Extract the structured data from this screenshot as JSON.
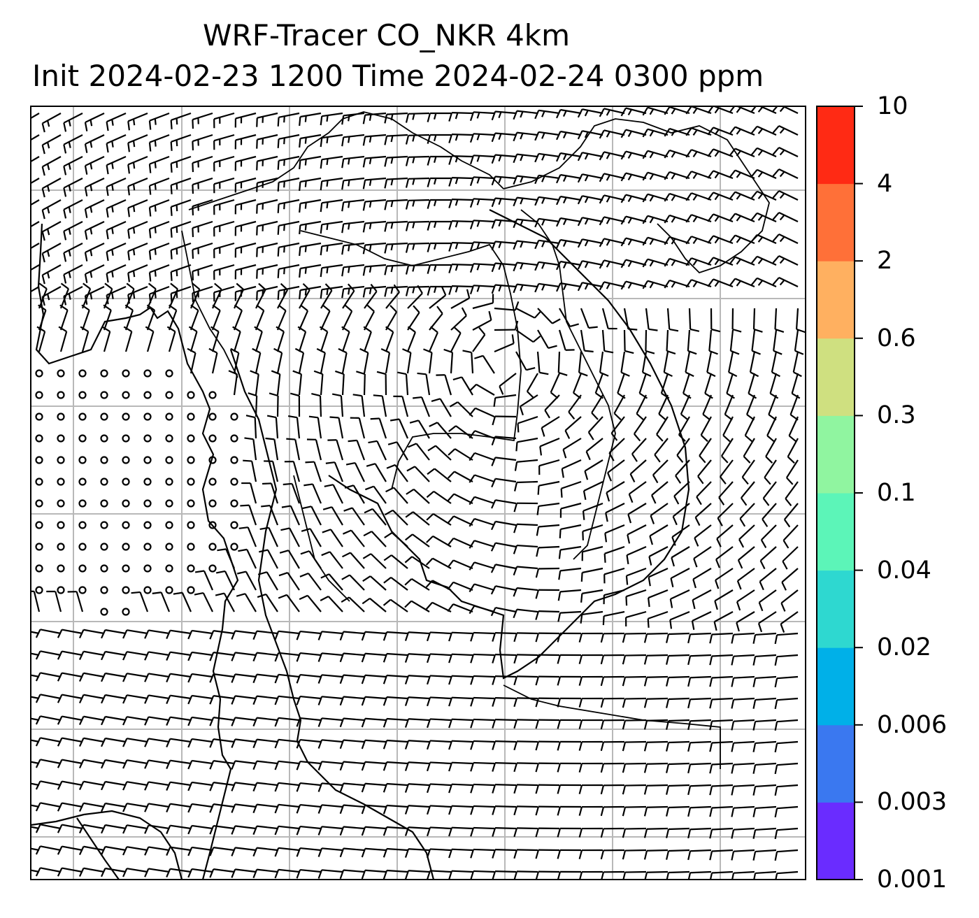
{
  "title": {
    "line1": "WRF-Tracer CO_NKR 4km",
    "line2": "Init 2024-02-23 1200 Time 2024-02-24 0300 ppm"
  },
  "colorbar": {
    "levels": [
      "0.001",
      "0.003",
      "0.006",
      "0.02",
      "0.04",
      "0.1",
      "0.3",
      "0.6",
      "2",
      "4",
      "10"
    ],
    "colors": [
      "#6a2cff",
      "#3a78f0",
      "#00b0e8",
      "#2ed8d0",
      "#5cf5b8",
      "#90f5a0",
      "#cfe080",
      "#ffb060",
      "#ff7038",
      "#ff2a14"
    ]
  },
  "map": {
    "gridlines": "on",
    "grid_color": "#b8b8b8",
    "features": [
      "wind-barbs",
      "coastlines",
      "country-borders",
      "calm-wind-circles"
    ]
  }
}
